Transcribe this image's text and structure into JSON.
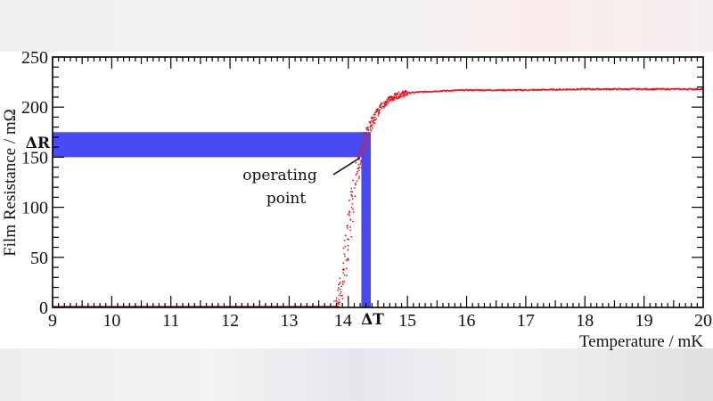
{
  "chart_data": {
    "type": "scatter",
    "title": "",
    "xlabel": "Temperature / mK",
    "ylabel": "Film Resistance / mΩ",
    "xlim": [
      9,
      20
    ],
    "ylim": [
      0,
      250
    ],
    "x_ticks": [
      9,
      10,
      11,
      12,
      13,
      14,
      15,
      16,
      17,
      18,
      19,
      20
    ],
    "y_ticks": [
      0,
      50,
      100,
      150,
      200,
      250
    ],
    "x_tick_labels": [
      "9",
      "10",
      "11",
      "12",
      "13",
      "14",
      "15",
      "16",
      "17",
      "18",
      "19",
      "20"
    ],
    "y_tick_labels": [
      "0",
      "50",
      "100",
      "150",
      "200",
      "250"
    ],
    "grid": false,
    "legend": null,
    "series": [
      {
        "name": "Film resistance",
        "color": "#e8141c",
        "marker": "dot",
        "x": [
          9.0,
          10.0,
          11.0,
          12.0,
          13.0,
          13.5,
          13.8,
          13.85,
          13.9,
          13.95,
          14.0,
          14.05,
          14.1,
          14.15,
          14.2,
          14.25,
          14.3,
          14.35,
          14.4,
          14.5,
          14.6,
          14.7,
          14.8,
          14.9,
          15.0,
          15.2,
          15.5,
          16.0,
          17.0,
          18.0,
          19.0,
          20.0
        ],
        "y": [
          0,
          0,
          0,
          0,
          0,
          0,
          2,
          10,
          25,
          45,
          70,
          95,
          115,
          135,
          150,
          160,
          170,
          178,
          185,
          195,
          203,
          208,
          211,
          213,
          214,
          215,
          216,
          217,
          217,
          218,
          218,
          218
        ]
      }
    ],
    "annotations": [
      {
        "text": "ΔR",
        "type": "band",
        "axis": "y",
        "range": [
          150,
          175
        ],
        "color": "#4a4af5"
      },
      {
        "text": "ΔT",
        "type": "band",
        "axis": "x",
        "range": [
          14.22,
          14.38
        ],
        "color": "#4a4af5"
      },
      {
        "text": "operating point",
        "type": "arrow",
        "x": 14.3,
        "y": 150
      }
    ]
  },
  "labels": {
    "operating_point_line1": "operating",
    "operating_point_line2": "point",
    "delta_r": "ΔR",
    "delta_t": "ΔT"
  }
}
